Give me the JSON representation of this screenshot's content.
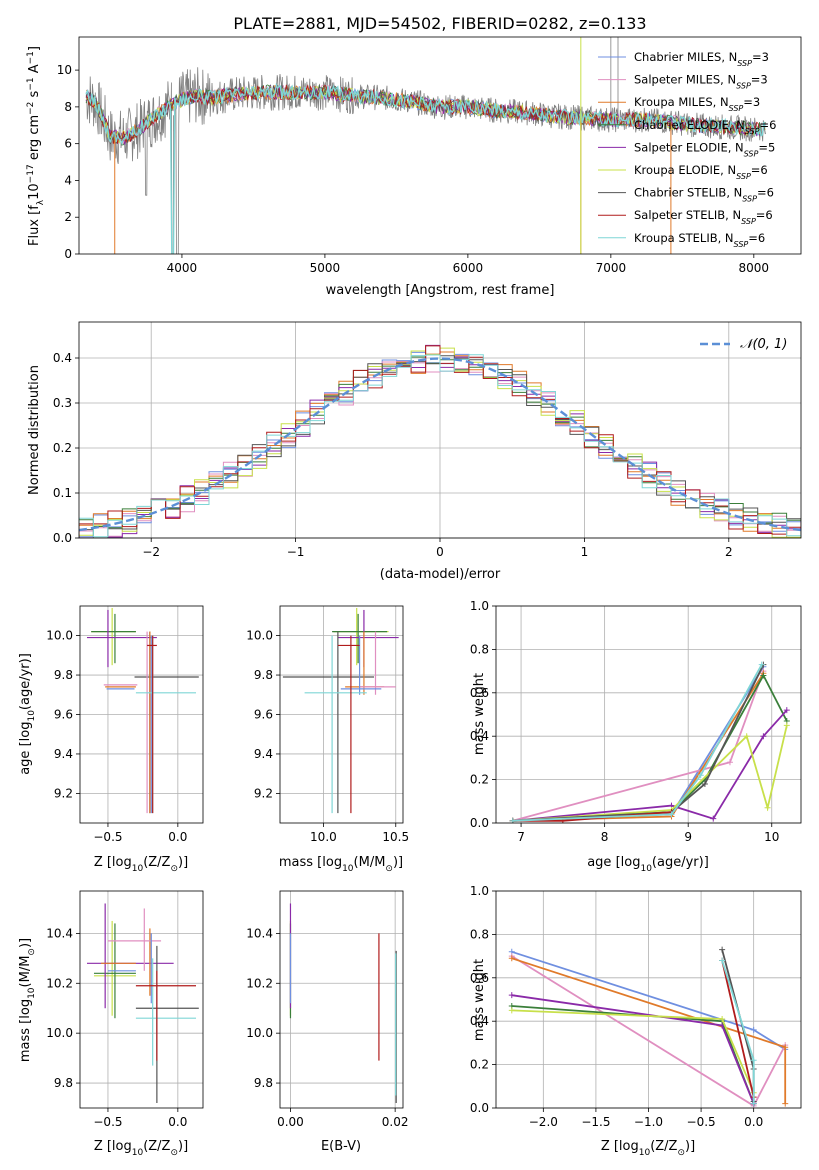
{
  "figure_title": "PLATE=2881, MJD=54502, FIBERID=0282, z=0.133",
  "colors": {
    "cmi": "#6f8fe0",
    "smi": "#e08fc0",
    "kmi": "#e07a2a",
    "cel": "#3a7f3a",
    "sel": "#8a2aa8",
    "kel": "#c8e04a",
    "cst": "#555555",
    "sst": "#b01c1c",
    "kst": "#7fd6d6"
  },
  "chart_data": [
    {
      "type": "line",
      "panel": "spectrum",
      "xlabel": "wavelength [Angstrom, rest frame]",
      "ylabel_main": "Flux [f",
      "ylabel_sub": "λ",
      "ylabel_rest": "10",
      "ylabel_exp1": "−17",
      "ylabel_tail1": " erg cm",
      "ylabel_exp2": "−2",
      "ylabel_tail2": " s",
      "ylabel_exp3": "−1",
      "ylabel_tail3": " A",
      "ylabel_exp4": "−1",
      "ylabel_end": "]",
      "xlim": [
        3280,
        8330
      ],
      "ylim": [
        0,
        11.8
      ],
      "xticks": [
        "4000",
        "5000",
        "6000",
        "7000",
        "8000"
      ],
      "yticks": [
        "0",
        "2",
        "4",
        "6",
        "8",
        "10"
      ],
      "legend_position": "right",
      "legend": [
        {
          "label": "Chabrier MILES, N",
          "sub": "SSP",
          "val": "=3",
          "color": "cmi"
        },
        {
          "label": "Salpeter MILES, N",
          "sub": "SSP",
          "val": "=3",
          "color": "smi"
        },
        {
          "label": "Kroupa MILES, N",
          "sub": "SSP",
          "val": "=3",
          "color": "kmi"
        },
        {
          "label": "Chabrier ELODIE, N",
          "sub": "SSP",
          "val": "=6",
          "color": "cel"
        },
        {
          "label": "Salpeter ELODIE, N",
          "sub": "SSP",
          "val": "=5",
          "color": "sel"
        },
        {
          "label": "Kroupa ELODIE, N",
          "sub": "SSP",
          "val": "=6",
          "color": "kel"
        },
        {
          "label": "Chabrier STELIB, N",
          "sub": "SSP",
          "val": "=6",
          "color": "cst"
        },
        {
          "label": "Salpeter STELIB, N",
          "sub": "SSP",
          "val": "=6",
          "color": "sst"
        },
        {
          "label": "Kroupa STELIB, N",
          "sub": "SSP",
          "val": "=6",
          "color": "kst"
        }
      ],
      "data_continuum": {
        "x": [
          3330,
          3400,
          3500,
          3600,
          3700,
          3800,
          3900,
          4000,
          4100,
          4200,
          4400,
          4600,
          4800,
          5000,
          5200,
          5400,
          5600,
          5800,
          6000,
          6200,
          6400,
          6600,
          6800,
          7000,
          7200,
          7400,
          7600,
          7800,
          8000,
          8080
        ],
        "y": [
          8.6,
          8.2,
          6.4,
          6.3,
          6.8,
          7.4,
          8.0,
          8.4,
          8.6,
          8.5,
          8.7,
          8.8,
          8.8,
          8.8,
          8.6,
          8.5,
          8.3,
          8.0,
          8.0,
          7.8,
          7.7,
          7.5,
          7.4,
          7.3,
          7.3,
          7.2,
          7.0,
          6.9,
          6.8,
          6.8
        ]
      },
      "models_note_values": {
        "kroupa_miles_drop_x": [
          3530,
          6790,
          7420
        ],
        "spike_x": [
          7000,
          7050
        ]
      }
    },
    {
      "type": "bar",
      "panel": "residual_histogram",
      "xlabel": "(data-model)/error",
      "ylabel": "Normed distribution",
      "xlim": [
        -2.5,
        2.5
      ],
      "ylim": [
        0,
        0.48
      ],
      "xticks": [
        "−2",
        "−1",
        "0",
        "1",
        "2"
      ],
      "xtick_values": [
        -2,
        -1,
        0,
        1,
        2
      ],
      "yticks": [
        "0.0",
        "0.1",
        "0.2",
        "0.3",
        "0.4"
      ],
      "ytick_values": [
        0,
        0.1,
        0.2,
        0.3,
        0.4
      ],
      "legend": [
        {
          "label": "𝒩(0, 1)",
          "style": "dashed",
          "color": "#5b8fd6"
        }
      ],
      "legend_position": "top-right",
      "bin_width": 0.1,
      "series_colors": [
        "cmi",
        "smi",
        "kmi",
        "cel",
        "sel",
        "kel",
        "cst",
        "sst",
        "kst"
      ]
    },
    {
      "type": "scatter",
      "panel": "age_vs_Z",
      "xlabel": "Z [log",
      "xlabel_sub": "10",
      "xlabel_rest": "(Z/Z",
      "xlabel_sun": "⊙",
      "xlabel_end": ")]",
      "ylabel": "age  [log",
      "ylabel_sub": "10",
      "ylabel_rest": "(age/yr)]",
      "xlim": [
        -0.7,
        0.18
      ],
      "ylim": [
        9.05,
        10.15
      ],
      "xticks": [
        "−0.5",
        "0.0"
      ],
      "xtick_values": [
        -0.5,
        0.0
      ],
      "yticks": [
        "9.2",
        "9.4",
        "9.6",
        "9.8",
        "10.0"
      ],
      "ytick_values": [
        9.2,
        9.4,
        9.6,
        9.8,
        10.0
      ],
      "points": [
        {
          "c": "kel",
          "x": -0.47,
          "y": 10.02,
          "xe": [
            -0.62,
            -0.3
          ],
          "ye": [
            9.85,
            10.14
          ]
        },
        {
          "c": "cel",
          "x": -0.45,
          "y": 10.02,
          "xe": [
            -0.62,
            -0.3
          ],
          "ye": [
            9.86,
            10.11
          ]
        },
        {
          "c": "sel",
          "x": -0.5,
          "y": 9.99,
          "xe": [
            -0.65,
            -0.15
          ],
          "ye": [
            9.84,
            10.13
          ]
        },
        {
          "c": "cst",
          "x": -0.2,
          "y": 9.79,
          "xe": [
            -0.31,
            0.15
          ],
          "ye": [
            9.1,
            10.02
          ]
        },
        {
          "c": "kmi",
          "x": -0.2,
          "y": 9.74,
          "xe": [
            -0.52,
            -0.3
          ],
          "ye": [
            9.1,
            10.02
          ]
        },
        {
          "c": "smi",
          "x": -0.22,
          "y": 9.75,
          "xe": [
            -0.53,
            -0.29
          ],
          "ye": [
            9.1,
            10.02
          ]
        },
        {
          "c": "cmi",
          "x": -0.19,
          "y": 9.73,
          "xe": [
            -0.51,
            -0.31
          ],
          "ye": [
            9.1,
            10.0
          ]
        },
        {
          "c": "kst",
          "x": -0.18,
          "y": 9.71,
          "xe": [
            -0.3,
            0.13
          ],
          "ye": [
            9.1,
            10.0
          ]
        },
        {
          "c": "sst",
          "x": -0.18,
          "y": 9.95,
          "xe": [
            -0.22,
            -0.15
          ],
          "ye": [
            9.1,
            10.0
          ]
        }
      ]
    },
    {
      "type": "scatter",
      "panel": "age_vs_mass",
      "xlabel": "mass [log",
      "xlabel_sub": "10",
      "xlabel_rest": "(M/M",
      "xlabel_sun": "⊙",
      "xlabel_end": ")]",
      "xlim": [
        9.7,
        10.55
      ],
      "ylim": [
        9.05,
        10.15
      ],
      "xticks": [
        "10.0",
        "10.5"
      ],
      "xtick_values": [
        10.0,
        10.5
      ],
      "yticks": [
        "9.2",
        "9.4",
        "9.6",
        "9.8",
        "10.0"
      ],
      "ytick_values": [
        9.2,
        9.4,
        9.6,
        9.8,
        10.0
      ],
      "points": [
        {
          "c": "kel",
          "x": 10.23,
          "y": 10.02,
          "xe": [
            10.07,
            10.45
          ],
          "ye": [
            9.85,
            10.14
          ]
        },
        {
          "c": "cel",
          "x": 10.24,
          "y": 10.02,
          "xe": [
            10.06,
            10.44
          ],
          "ye": [
            9.86,
            10.11
          ]
        },
        {
          "c": "sel",
          "x": 10.28,
          "y": 9.99,
          "xe": [
            10.1,
            10.52
          ],
          "ye": [
            9.84,
            10.13
          ]
        },
        {
          "c": "cst",
          "x": 10.1,
          "y": 9.79,
          "xe": [
            9.72,
            10.35
          ],
          "ye": [
            9.1,
            10.02
          ]
        },
        {
          "c": "kmi",
          "x": 10.28,
          "y": 9.74,
          "xe": [
            10.15,
            10.42
          ],
          "ye": [
            9.7,
            10.02
          ]
        },
        {
          "c": "smi",
          "x": 10.36,
          "y": 9.74,
          "xe": [
            10.25,
            10.5
          ],
          "ye": [
            9.7,
            10.02
          ]
        },
        {
          "c": "cmi",
          "x": 10.25,
          "y": 9.73,
          "xe": [
            10.12,
            10.4
          ],
          "ye": [
            9.7,
            10.0
          ]
        },
        {
          "c": "kst",
          "x": 10.06,
          "y": 9.71,
          "xe": [
            9.87,
            10.3
          ],
          "ye": [
            9.1,
            10.0
          ]
        },
        {
          "c": "sst",
          "x": 10.19,
          "y": 9.95,
          "xe": [
            10.1,
            10.25
          ],
          "ye": [
            9.1,
            10.0
          ]
        }
      ]
    },
    {
      "type": "line",
      "panel": "mass_weight_vs_age",
      "xlabel": "age  [log",
      "xlabel_sub": "10",
      "xlabel_rest": "(age/yr)]",
      "ylabel": "mass weight",
      "xlim": [
        6.7,
        10.35
      ],
      "ylim": [
        0,
        1.0
      ],
      "xticks": [
        "7",
        "8",
        "9",
        "10"
      ],
      "xtick_values": [
        7,
        8,
        9,
        10
      ],
      "yticks": [
        "0.0",
        "0.2",
        "0.4",
        "0.6",
        "0.8",
        "1.0"
      ],
      "ytick_values": [
        0,
        0.2,
        0.4,
        0.6,
        0.8,
        1.0
      ],
      "series": [
        {
          "c": "cmi",
          "x": [
            6.9,
            8.8,
            9.9
          ],
          "y": [
            0.01,
            0.04,
            0.72
          ]
        },
        {
          "c": "smi",
          "x": [
            6.9,
            9.5,
            9.9
          ],
          "y": [
            0.01,
            0.28,
            0.7
          ]
        },
        {
          "c": "kmi",
          "x": [
            6.9,
            8.8,
            9.9
          ],
          "y": [
            0.01,
            0.03,
            0.69
          ]
        },
        {
          "c": "cel",
          "x": [
            6.9,
            8.8,
            9.2,
            9.9,
            10.18
          ],
          "y": [
            0.01,
            0.05,
            0.2,
            0.68,
            0.47
          ]
        },
        {
          "c": "sel",
          "x": [
            6.9,
            8.8,
            9.3,
            9.9,
            10.18
          ],
          "y": [
            0.01,
            0.08,
            0.02,
            0.4,
            0.52
          ]
        },
        {
          "c": "kel",
          "x": [
            6.9,
            8.8,
            9.7,
            9.95,
            10.18
          ],
          "y": [
            0.01,
            0.06,
            0.4,
            0.07,
            0.45
          ]
        },
        {
          "c": "cst",
          "x": [
            6.9,
            8.8,
            9.2,
            9.9
          ],
          "y": [
            0.01,
            0.05,
            0.18,
            0.73
          ]
        },
        {
          "c": "sst",
          "x": [
            6.9,
            7.5,
            8.8
          ],
          "y": [
            0.01,
            0.01,
            0.05
          ]
        },
        {
          "c": "kst",
          "x": [
            6.9,
            8.8,
            9.15,
            9.88
          ],
          "y": [
            0.01,
            0.04,
            0.22,
            0.73
          ]
        }
      ]
    },
    {
      "type": "scatter",
      "panel": "mass_vs_Z",
      "xlabel": "Z [log",
      "xlabel_sub": "10",
      "xlabel_rest": "(Z/Z",
      "xlabel_sun": "⊙",
      "xlabel_end": ")]",
      "ylabel": "mass [log",
      "ylabel_sub": "10",
      "ylabel_rest": "(M/M",
      "ylabel_sun": "⊙",
      "ylabel_end": ")]",
      "xlim": [
        -0.7,
        0.18
      ],
      "ylim": [
        9.7,
        10.57
      ],
      "xticks": [
        "−0.5",
        "0.0"
      ],
      "xtick_values": [
        -0.5,
        0.0
      ],
      "yticks": [
        "9.8",
        "10.0",
        "10.2",
        "10.4"
      ],
      "ytick_values": [
        9.8,
        10.0,
        10.2,
        10.4
      ],
      "points": [
        {
          "c": "kel",
          "x": -0.47,
          "y": 10.23,
          "xe": [
            -0.6,
            -0.3
          ],
          "ye": [
            10.07,
            10.45
          ]
        },
        {
          "c": "cel",
          "x": -0.45,
          "y": 10.24,
          "xe": [
            -0.6,
            -0.3
          ],
          "ye": [
            10.06,
            10.44
          ]
        },
        {
          "c": "sel",
          "x": -0.52,
          "y": 10.28,
          "xe": [
            -0.65,
            -0.03
          ],
          "ye": [
            10.1,
            10.52
          ]
        },
        {
          "c": "cst",
          "x": -0.15,
          "y": 10.1,
          "xe": [
            -0.3,
            0.15
          ],
          "ye": [
            9.72,
            10.35
          ]
        },
        {
          "c": "kmi",
          "x": -0.2,
          "y": 10.28,
          "xe": [
            -0.55,
            -0.3
          ],
          "ye": [
            10.15,
            10.42
          ]
        },
        {
          "c": "smi",
          "x": -0.24,
          "y": 10.37,
          "xe": [
            -0.5,
            -0.12
          ],
          "ye": [
            10.25,
            10.5
          ]
        },
        {
          "c": "cmi",
          "x": -0.19,
          "y": 10.25,
          "xe": [
            -0.5,
            -0.3
          ],
          "ye": [
            10.12,
            10.4
          ]
        },
        {
          "c": "kst",
          "x": -0.18,
          "y": 10.06,
          "xe": [
            -0.3,
            0.13
          ],
          "ye": [
            9.87,
            10.3
          ]
        },
        {
          "c": "sst",
          "x": -0.15,
          "y": 10.19,
          "xe": [
            -0.3,
            0.13
          ],
          "ye": [
            9.89,
            10.25
          ]
        }
      ]
    },
    {
      "type": "scatter",
      "panel": "mass_vs_EBV",
      "xlabel": "E(B-V)",
      "xlim": [
        -0.002,
        0.0215
      ],
      "ylim": [
        9.7,
        10.57
      ],
      "xticks": [
        "0.00",
        "0.02"
      ],
      "xtick_values": [
        0.0,
        0.02
      ],
      "yticks": [
        "9.8",
        "10.0",
        "10.2",
        "10.4"
      ],
      "ytick_values": [
        9.8,
        10.0,
        10.2,
        10.4
      ],
      "points": [
        {
          "c": "kel",
          "x": 0.0,
          "y": 10.23,
          "ye": [
            10.07,
            10.45
          ]
        },
        {
          "c": "cel",
          "x": 0.0,
          "y": 10.24,
          "ye": [
            10.06,
            10.44
          ]
        },
        {
          "c": "sel",
          "x": 0.0,
          "y": 10.28,
          "ye": [
            10.1,
            10.52
          ]
        },
        {
          "c": "cmi",
          "x": 0.0,
          "y": 10.25,
          "ye": [
            10.12,
            10.4
          ]
        },
        {
          "c": "sst",
          "x": 0.0169,
          "y": 10.19,
          "ye": [
            9.89,
            10.4
          ]
        },
        {
          "c": "cst",
          "x": 0.0202,
          "y": 10.1,
          "ye": [
            9.72,
            10.33
          ]
        },
        {
          "c": "kst",
          "x": 0.0201,
          "y": 10.06,
          "ye": [
            9.75,
            10.32
          ]
        }
      ]
    },
    {
      "type": "line",
      "panel": "mass_weight_vs_Z",
      "xlabel": "Z [log",
      "xlabel_sub": "10",
      "xlabel_rest": "(Z/Z",
      "xlabel_sun": "⊙",
      "xlabel_end": ")]",
      "ylabel": "mass weight",
      "xlim": [
        -2.45,
        0.45
      ],
      "ylim": [
        0,
        1.0
      ],
      "xticks": [
        "−2.0",
        "−1.5",
        "−1.0",
        "−0.5",
        "0.0"
      ],
      "xtick_values": [
        -2.0,
        -1.5,
        -1.0,
        -0.5,
        0.0
      ],
      "yticks": [
        "0.0",
        "0.2",
        "0.4",
        "0.6",
        "0.8",
        "1.0"
      ],
      "ytick_values": [
        0,
        0.2,
        0.4,
        0.6,
        0.8,
        1.0
      ],
      "series": [
        {
          "c": "cmi",
          "x": [
            -2.3,
            0.0,
            0.3
          ],
          "y": [
            0.72,
            0.36,
            0.27
          ]
        },
        {
          "c": "smi",
          "x": [
            -2.3,
            0.0,
            0.3
          ],
          "y": [
            0.7,
            0.01,
            0.29
          ]
        },
        {
          "c": "kmi",
          "x": [
            -2.3,
            0.3,
            0.3
          ],
          "y": [
            0.69,
            0.28,
            0.02
          ]
        },
        {
          "c": "cel",
          "x": [
            -2.3,
            -0.3,
            0.0
          ],
          "y": [
            0.47,
            0.4,
            0.02
          ]
        },
        {
          "c": "sel",
          "x": [
            -2.3,
            -0.3,
            0.0
          ],
          "y": [
            0.52,
            0.38,
            0.02
          ]
        },
        {
          "c": "kel",
          "x": [
            -2.3,
            -0.3,
            0.0
          ],
          "y": [
            0.45,
            0.41,
            0.07
          ]
        },
        {
          "c": "cst",
          "x": [
            -0.3,
            0.0,
            0.0
          ],
          "y": [
            0.73,
            0.18,
            0.03
          ]
        },
        {
          "c": "sst",
          "x": [
            -0.3,
            0.0
          ],
          "y": [
            0.68,
            0.05
          ]
        },
        {
          "c": "kst",
          "x": [
            -0.3,
            0.0,
            0.0
          ],
          "y": [
            0.68,
            0.22,
            0.02
          ]
        }
      ]
    }
  ]
}
